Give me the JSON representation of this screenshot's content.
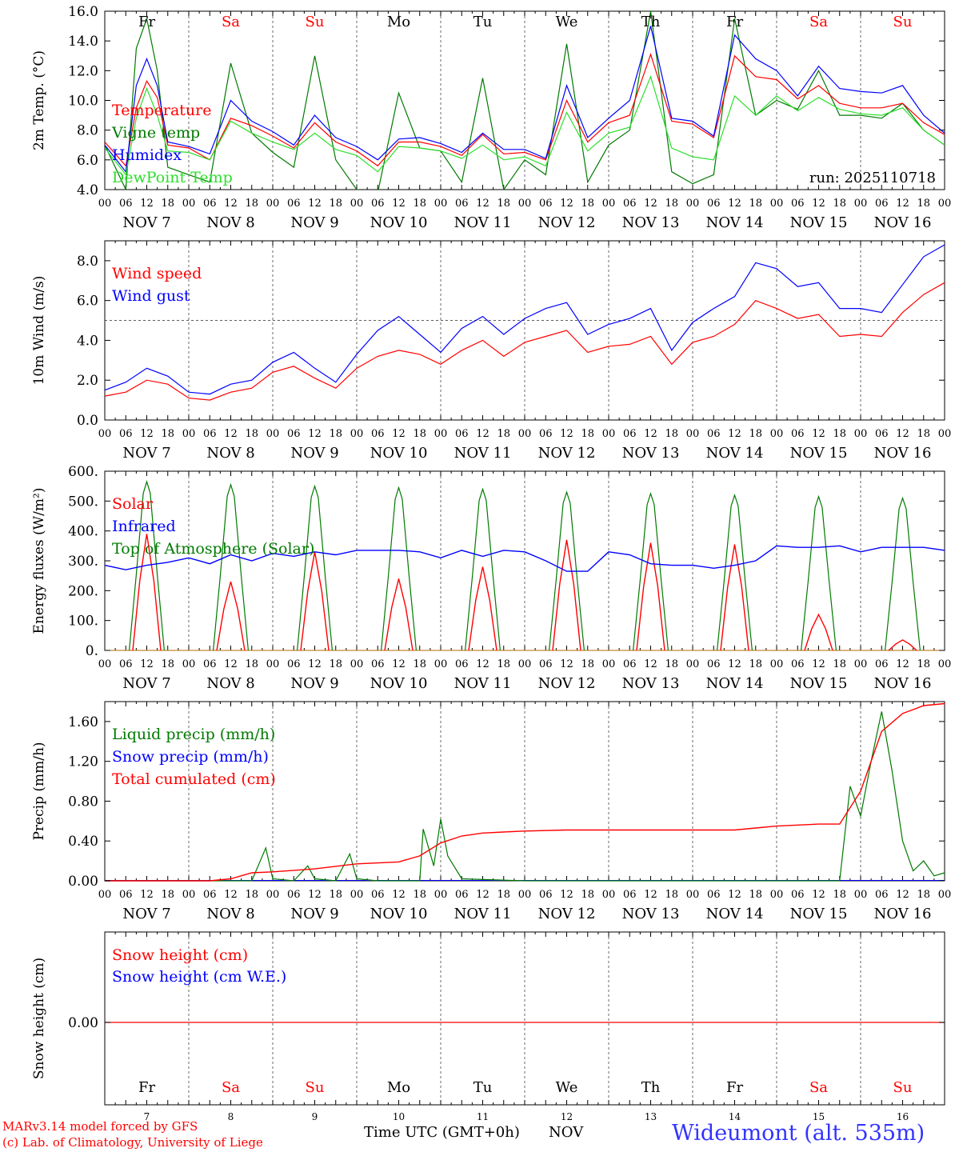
{
  "colors": {
    "red": "#ff0000",
    "green": "#007a00",
    "blue": "#0000ff",
    "lightgreen": "#2cdf2c",
    "grid": "#444444"
  },
  "days": [
    {
      "abbr": "Fr",
      "num": "7",
      "weekend": false
    },
    {
      "abbr": "Sa",
      "num": "8",
      "weekend": true
    },
    {
      "abbr": "Su",
      "num": "9",
      "weekend": true
    },
    {
      "abbr": "Mo",
      "num": "10",
      "weekend": false
    },
    {
      "abbr": "Tu",
      "num": "11",
      "weekend": false
    },
    {
      "abbr": "We",
      "num": "12",
      "weekend": false
    },
    {
      "abbr": "Th",
      "num": "13",
      "weekend": false
    },
    {
      "abbr": "Fr",
      "num": "14",
      "weekend": false
    },
    {
      "abbr": "Sa",
      "num": "15",
      "weekend": true
    },
    {
      "abbr": "Su",
      "num": "16",
      "weekend": true
    }
  ],
  "hour_ticks": [
    "00",
    "06",
    "12",
    "18"
  ],
  "hour_end": "00",
  "month": "NOV",
  "footer": {
    "model": "MARv3.14 model forced by GFS",
    "lab": "(c) Lab. of Climatology, University of Liege",
    "xlabel": "Time UTC (GMT+0h)",
    "month": "NOV",
    "station": "Wideumont (alt. 535m)"
  },
  "chart_data": [
    {
      "type": "line",
      "id": "temp",
      "ylabel": "2m Temp. (°C)",
      "ylim": [
        4,
        16
      ],
      "yticks": [
        "4.0",
        "6.0",
        "8.0",
        "10.0",
        "12.0",
        "14.0",
        "16.0"
      ],
      "annotation": "run: 2025110718",
      "legend": [
        {
          "label": "Temperature",
          "color": "#ff0000"
        },
        {
          "label": "Vigne temp",
          "color": "#007a00"
        },
        {
          "label": "Humidex",
          "color": "#0000ff"
        },
        {
          "label": "DewPoint Temp",
          "color": "#2cdf2c"
        }
      ],
      "x_hours": [
        0,
        6,
        9,
        12,
        15,
        18,
        24,
        30,
        36,
        42,
        48,
        54,
        60,
        66,
        72,
        78,
        84,
        90,
        96,
        102,
        108,
        114,
        120,
        126,
        132,
        138,
        144,
        150,
        156,
        162,
        168,
        174,
        180,
        186,
        192,
        198,
        204,
        210,
        216,
        222,
        228,
        234,
        240
      ],
      "series": [
        {
          "name": "Temperature",
          "color": "#ff0000",
          "values": [
            7.2,
            5.6,
            9.5,
            11.3,
            10.2,
            7.0,
            6.8,
            6.0,
            8.8,
            8.3,
            7.6,
            6.8,
            8.5,
            7.2,
            6.6,
            5.6,
            7.2,
            7.2,
            6.9,
            6.3,
            7.7,
            6.4,
            6.5,
            6.0,
            10.0,
            7.2,
            8.5,
            9.0,
            13.1,
            8.6,
            8.4,
            7.5,
            13.0,
            11.6,
            11.4,
            10.1,
            11.0,
            9.8,
            9.5,
            9.5,
            9.8,
            8.5,
            7.7
          ]
        },
        {
          "name": "Humidex",
          "color": "#0000ff",
          "values": [
            7.0,
            5.2,
            11.0,
            12.8,
            11.0,
            7.2,
            6.9,
            6.4,
            10.0,
            8.6,
            7.9,
            7.0,
            9.0,
            7.5,
            6.9,
            6.0,
            7.4,
            7.5,
            7.1,
            6.5,
            7.8,
            6.7,
            6.7,
            6.1,
            11.0,
            7.5,
            8.8,
            10.0,
            15.0,
            8.8,
            8.6,
            7.6,
            14.4,
            12.8,
            12.0,
            10.3,
            12.3,
            10.8,
            10.6,
            10.5,
            11.0,
            9.0,
            7.8
          ]
        },
        {
          "name": "DewPoint Temp",
          "color": "#2cdf2c",
          "values": [
            6.8,
            5.0,
            8.8,
            10.8,
            9.0,
            6.6,
            6.5,
            6.0,
            8.6,
            7.8,
            7.2,
            6.7,
            7.8,
            6.7,
            6.3,
            5.2,
            6.9,
            6.8,
            6.6,
            6.1,
            7.0,
            6.0,
            6.2,
            5.6,
            9.2,
            6.6,
            7.8,
            8.2,
            11.6,
            6.8,
            6.2,
            6.0,
            10.3,
            9.0,
            10.3,
            9.3,
            10.2,
            9.4,
            9.1,
            9.0,
            9.5,
            8.0,
            7.0
          ]
        },
        {
          "name": "Vigne temp",
          "color": "#007a00",
          "values": [
            7.0,
            4.0,
            13.5,
            15.5,
            12.0,
            5.5,
            5.0,
            4.5,
            12.5,
            7.8,
            6.5,
            5.5,
            13.0,
            6.0,
            4.0,
            3.8,
            10.5,
            6.8,
            6.6,
            4.5,
            11.5,
            4.0,
            6.0,
            5.0,
            13.8,
            4.5,
            7.0,
            8.0,
            16.0,
            5.2,
            4.4,
            5.0,
            15.5,
            9.0,
            10.0,
            9.4,
            12.0,
            9.0,
            9.0,
            8.8,
            9.8,
            8.0,
            7.0
          ]
        }
      ]
    },
    {
      "type": "line",
      "id": "wind",
      "ylabel": "10m Wind (m/s)",
      "ylim": [
        0,
        9
      ],
      "yticks": [
        "0.0",
        "2.0",
        "4.0",
        "6.0",
        "8.0"
      ],
      "reference_line": 5.0,
      "legend": [
        {
          "label": "Wind speed",
          "color": "#ff0000"
        },
        {
          "label": "Wind gust",
          "color": "#0000ff"
        }
      ],
      "x_hours": [
        0,
        6,
        12,
        18,
        24,
        30,
        36,
        42,
        48,
        54,
        60,
        66,
        72,
        78,
        84,
        90,
        96,
        102,
        108,
        114,
        120,
        126,
        132,
        138,
        144,
        150,
        156,
        162,
        168,
        174,
        180,
        186,
        192,
        198,
        204,
        210,
        216,
        222,
        228,
        234,
        240
      ],
      "series": [
        {
          "name": "Wind speed",
          "color": "#ff0000",
          "values": [
            1.2,
            1.4,
            2.0,
            1.8,
            1.1,
            1.0,
            1.4,
            1.6,
            2.4,
            2.7,
            2.1,
            1.6,
            2.6,
            3.2,
            3.5,
            3.3,
            2.8,
            3.5,
            4.0,
            3.2,
            3.9,
            4.2,
            4.5,
            3.4,
            3.7,
            3.8,
            4.2,
            2.8,
            3.9,
            4.2,
            4.8,
            6.0,
            5.6,
            5.1,
            5.3,
            4.2,
            4.3,
            4.2,
            5.4,
            6.3,
            6.9
          ]
        },
        {
          "name": "Wind gust",
          "color": "#0000ff",
          "values": [
            1.5,
            1.9,
            2.6,
            2.2,
            1.4,
            1.3,
            1.8,
            2.0,
            2.9,
            3.4,
            2.6,
            1.9,
            3.3,
            4.5,
            5.2,
            4.3,
            3.4,
            4.6,
            5.2,
            4.3,
            5.1,
            5.6,
            5.9,
            4.3,
            4.8,
            5.1,
            5.6,
            3.5,
            4.9,
            5.6,
            6.2,
            7.9,
            7.6,
            6.7,
            6.9,
            5.6,
            5.6,
            5.4,
            6.8,
            8.2,
            8.8
          ]
        }
      ]
    },
    {
      "type": "line",
      "id": "flux",
      "ylabel": "Energy fluxes (W/m²)",
      "ylim": [
        0,
        600
      ],
      "yticks": [
        "0.",
        "100.",
        "200.",
        "300.",
        "400.",
        "500.",
        "600."
      ],
      "legend": [
        {
          "label": "Solar",
          "color": "#ff0000"
        },
        {
          "label": "Infrared",
          "color": "#0000ff"
        },
        {
          "label": "Top of Atmosphere (Solar)",
          "color": "#007a00"
        }
      ],
      "toa_peaks": [
        565,
        555,
        550,
        545,
        540,
        530,
        525,
        520,
        515,
        510
      ],
      "solar_peaks": [
        390,
        230,
        330,
        240,
        280,
        370,
        360,
        355,
        120,
        35
      ],
      "x_hours": [
        0,
        6,
        12,
        18,
        24,
        30,
        36,
        42,
        48,
        54,
        60,
        66,
        72,
        78,
        84,
        90,
        96,
        102,
        108,
        114,
        120,
        126,
        132,
        138,
        144,
        150,
        156,
        162,
        168,
        174,
        180,
        186,
        192,
        198,
        204,
        210,
        216,
        222,
        228,
        234,
        240
      ],
      "infrared": [
        285,
        270,
        285,
        295,
        310,
        290,
        320,
        300,
        325,
        315,
        330,
        320,
        335,
        335,
        335,
        330,
        310,
        335,
        315,
        335,
        330,
        300,
        265,
        265,
        330,
        320,
        290,
        285,
        285,
        275,
        285,
        300,
        350,
        345,
        345,
        350,
        330,
        345,
        345,
        345,
        335
      ]
    },
    {
      "type": "line",
      "id": "precip",
      "ylabel": "Precip (mm/h)",
      "ylim": [
        0,
        1.8
      ],
      "yticks": [
        "0.00",
        "0.40",
        "0.80",
        "1.20",
        "1.60"
      ],
      "legend": [
        {
          "label": "Liquid precip (mm/h)",
          "color": "#007a00"
        },
        {
          "label": "Snow precip (mm/h)",
          "color": "#0000ff"
        },
        {
          "label": "Total cumulated (cm)",
          "color": "#ff0000"
        }
      ],
      "cumulated_x": [
        0,
        30,
        36,
        42,
        48,
        60,
        72,
        84,
        90,
        96,
        102,
        108,
        114,
        120,
        132,
        156,
        180,
        186,
        192,
        204,
        210,
        216,
        222,
        228,
        234,
        240
      ],
      "cumulated": [
        0,
        0,
        0.02,
        0.08,
        0.09,
        0.12,
        0.17,
        0.19,
        0.25,
        0.38,
        0.45,
        0.48,
        0.49,
        0.5,
        0.51,
        0.51,
        0.51,
        0.53,
        0.55,
        0.57,
        0.57,
        0.9,
        1.5,
        1.68,
        1.76,
        1.78
      ],
      "liquid_x": [
        0,
        30,
        42,
        46,
        48,
        54,
        58,
        60,
        66,
        70,
        72,
        78,
        90,
        91,
        94,
        96,
        98,
        102,
        120,
        210,
        213,
        216,
        219,
        222,
        225,
        228,
        231,
        234,
        237,
        240
      ],
      "liquid": [
        0,
        0,
        0,
        0.33,
        0.02,
        0,
        0.15,
        0.02,
        0,
        0.27,
        0.02,
        0,
        0,
        0.52,
        0.15,
        0.62,
        0.25,
        0.02,
        0,
        0,
        0.95,
        0.65,
        1.2,
        1.7,
        1.1,
        0.4,
        0.1,
        0.2,
        0.05,
        0.08
      ]
    },
    {
      "type": "line",
      "id": "snow",
      "ylabel": "Snow height (cm)",
      "yticks": [
        "0.00"
      ],
      "legend": [
        {
          "label": "Snow height (cm)",
          "color": "#ff0000"
        },
        {
          "label": "Snow height (cm W.E.)",
          "color": "#0000ff"
        }
      ],
      "values": [
        0,
        0
      ]
    }
  ]
}
